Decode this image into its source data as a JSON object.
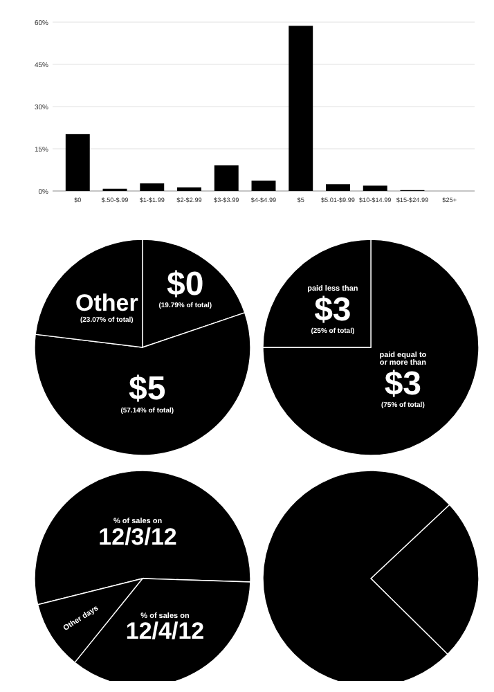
{
  "chart_data": [
    {
      "type": "bar",
      "categories": [
        "$0",
        "$.50-$.99",
        "$1-$1.99",
        "$2-$2.99",
        "$3-$3.99",
        "$4-$4.99",
        "$5",
        "$5.01-$9.99",
        "$10-$14.99",
        "$15-$24.99",
        "$25+"
      ],
      "values": [
        20.2,
        0.8,
        2.7,
        1.3,
        9.1,
        3.7,
        58.7,
        2.4,
        1.9,
        0.3,
        0
      ],
      "color": "#000000",
      "ylim": [
        0,
        60
      ],
      "yticks": [
        {
          "value": 0,
          "label": "0%"
        },
        {
          "value": 15,
          "label": "15%"
        },
        {
          "value": 30,
          "label": "30%"
        },
        {
          "value": 45,
          "label": "45%"
        },
        {
          "value": 60,
          "label": "60%"
        }
      ],
      "grid": "y"
    },
    {
      "type": "pie",
      "categories": [
        "$0",
        "$5",
        "Other"
      ],
      "values": [
        19.79,
        57.14,
        23.07
      ],
      "value_labels": [
        "(19.79% of total)",
        "(57.14% of total)",
        "(23.07% of total)"
      ],
      "colors": [
        "#000000",
        "#000000",
        "#000000"
      ]
    },
    {
      "type": "pie",
      "categories": [
        "paid equal to\nor more than\n$3",
        "paid less than\n$3"
      ],
      "values": [
        75,
        25
      ],
      "value_labels": [
        "(75% of total)",
        "(25% of total)"
      ],
      "colors": [
        "#000000",
        "#000000"
      ]
    },
    {
      "type": "pie",
      "categories": [
        "% of sales on\n12/3/12",
        "% of sales on\n12/4/12",
        "Other days"
      ],
      "values": [
        54.4,
        35.3,
        10.3
      ],
      "colors": [
        "#000000",
        "#000000",
        "#000000"
      ]
    },
    {
      "type": "pie",
      "categories": [
        null,
        null
      ],
      "values": [
        24.4,
        75.6
      ],
      "colors": [
        "#000000",
        "#000000"
      ]
    }
  ]
}
